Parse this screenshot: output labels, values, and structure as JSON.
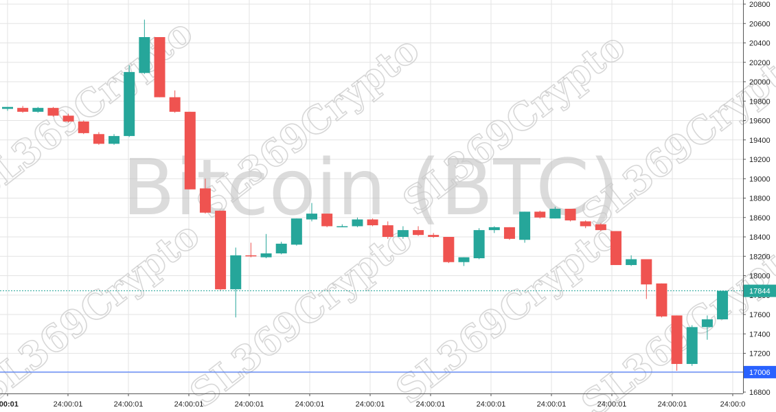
{
  "chart_data": {
    "type": "candlestick",
    "title": "Bitcoin (BTC)",
    "watermark": "SL369Crypto",
    "ylim": [
      16800,
      20800
    ],
    "y_ticks": [
      16800,
      17000,
      17200,
      17400,
      17600,
      17800,
      18000,
      18200,
      18400,
      18600,
      18800,
      19000,
      19200,
      19400,
      19600,
      19800,
      20000,
      20200,
      20400,
      20600,
      20800
    ],
    "x_tick_labels": [
      ":00:01",
      "24:00:01",
      "24:00:01",
      "24:00:01",
      "24:00:01",
      "24:00:01",
      "24:00:01",
      "24:00:01",
      "24:00:01",
      "24:00:01",
      "24:00:01",
      "24:00:01",
      "24:00:0"
    ],
    "current_price": {
      "value": 17844,
      "label": "17844",
      "color": "#26a69a"
    },
    "support_line": {
      "value": 17006,
      "label": "17006",
      "color": "#2962ff"
    },
    "colors": {
      "up": "#26a69a",
      "down": "#ef5350",
      "grid": "#e3e3e3"
    },
    "candles": [
      {
        "o": 19720,
        "h": 19740,
        "l": 19700,
        "c": 19740
      },
      {
        "o": 19730,
        "h": 19750,
        "l": 19680,
        "c": 19690
      },
      {
        "o": 19690,
        "h": 19740,
        "l": 19680,
        "c": 19730
      },
      {
        "o": 19730,
        "h": 19740,
        "l": 19640,
        "c": 19650
      },
      {
        "o": 19650,
        "h": 19670,
        "l": 19580,
        "c": 19590
      },
      {
        "o": 19590,
        "h": 19600,
        "l": 19460,
        "c": 19470
      },
      {
        "o": 19460,
        "h": 19480,
        "l": 19350,
        "c": 19360
      },
      {
        "o": 19360,
        "h": 19460,
        "l": 19350,
        "c": 19440
      },
      {
        "o": 19440,
        "h": 20170,
        "l": 19430,
        "c": 20100
      },
      {
        "o": 20090,
        "h": 20640,
        "l": 20080,
        "c": 20460
      },
      {
        "o": 20460,
        "h": 20460,
        "l": 19840,
        "c": 19840
      },
      {
        "o": 19840,
        "h": 19910,
        "l": 19680,
        "c": 19690
      },
      {
        "o": 19690,
        "h": 19690,
        "l": 18890,
        "c": 18890
      },
      {
        "o": 18900,
        "h": 19000,
        "l": 18640,
        "c": 18650
      },
      {
        "o": 18670,
        "h": 18670,
        "l": 17850,
        "c": 17860
      },
      {
        "o": 17860,
        "h": 18290,
        "l": 17570,
        "c": 18210
      },
      {
        "o": 18210,
        "h": 18340,
        "l": 18190,
        "c": 18200
      },
      {
        "o": 18190,
        "h": 18430,
        "l": 18180,
        "c": 18230
      },
      {
        "o": 18230,
        "h": 18350,
        "l": 18220,
        "c": 18330
      },
      {
        "o": 18320,
        "h": 18590,
        "l": 18310,
        "c": 18590
      },
      {
        "o": 18580,
        "h": 18750,
        "l": 18560,
        "c": 18640
      },
      {
        "o": 18640,
        "h": 18640,
        "l": 18500,
        "c": 18510
      },
      {
        "o": 18500,
        "h": 18530,
        "l": 18500,
        "c": 18510
      },
      {
        "o": 18510,
        "h": 18600,
        "l": 18500,
        "c": 18580
      },
      {
        "o": 18580,
        "h": 18590,
        "l": 18510,
        "c": 18520
      },
      {
        "o": 18520,
        "h": 18560,
        "l": 18380,
        "c": 18400
      },
      {
        "o": 18400,
        "h": 18510,
        "l": 18380,
        "c": 18470
      },
      {
        "o": 18470,
        "h": 18510,
        "l": 18410,
        "c": 18420
      },
      {
        "o": 18420,
        "h": 18440,
        "l": 18390,
        "c": 18400
      },
      {
        "o": 18400,
        "h": 18400,
        "l": 18130,
        "c": 18140
      },
      {
        "o": 18140,
        "h": 18190,
        "l": 18100,
        "c": 18190
      },
      {
        "o": 18180,
        "h": 18490,
        "l": 18170,
        "c": 18470
      },
      {
        "o": 18470,
        "h": 18510,
        "l": 18440,
        "c": 18500
      },
      {
        "o": 18500,
        "h": 18500,
        "l": 18370,
        "c": 18380
      },
      {
        "o": 18370,
        "h": 18660,
        "l": 18340,
        "c": 18660
      },
      {
        "o": 18660,
        "h": 18670,
        "l": 18590,
        "c": 18600
      },
      {
        "o": 18590,
        "h": 18710,
        "l": 18590,
        "c": 18690
      },
      {
        "o": 18690,
        "h": 18690,
        "l": 18560,
        "c": 18570
      },
      {
        "o": 18560,
        "h": 18570,
        "l": 18490,
        "c": 18510
      },
      {
        "o": 18530,
        "h": 18540,
        "l": 18460,
        "c": 18470
      },
      {
        "o": 18460,
        "h": 18460,
        "l": 18110,
        "c": 18110
      },
      {
        "o": 18110,
        "h": 18210,
        "l": 18100,
        "c": 18170
      },
      {
        "o": 18170,
        "h": 18170,
        "l": 17760,
        "c": 17910
      },
      {
        "o": 17920,
        "h": 17920,
        "l": 17570,
        "c": 17580
      },
      {
        "o": 17590,
        "h": 17590,
        "l": 17020,
        "c": 17090
      },
      {
        "o": 17090,
        "h": 17490,
        "l": 17070,
        "c": 17470
      },
      {
        "o": 17470,
        "h": 17590,
        "l": 17340,
        "c": 17550
      },
      {
        "o": 17550,
        "h": 17844,
        "l": 17550,
        "c": 17844
      }
    ]
  }
}
